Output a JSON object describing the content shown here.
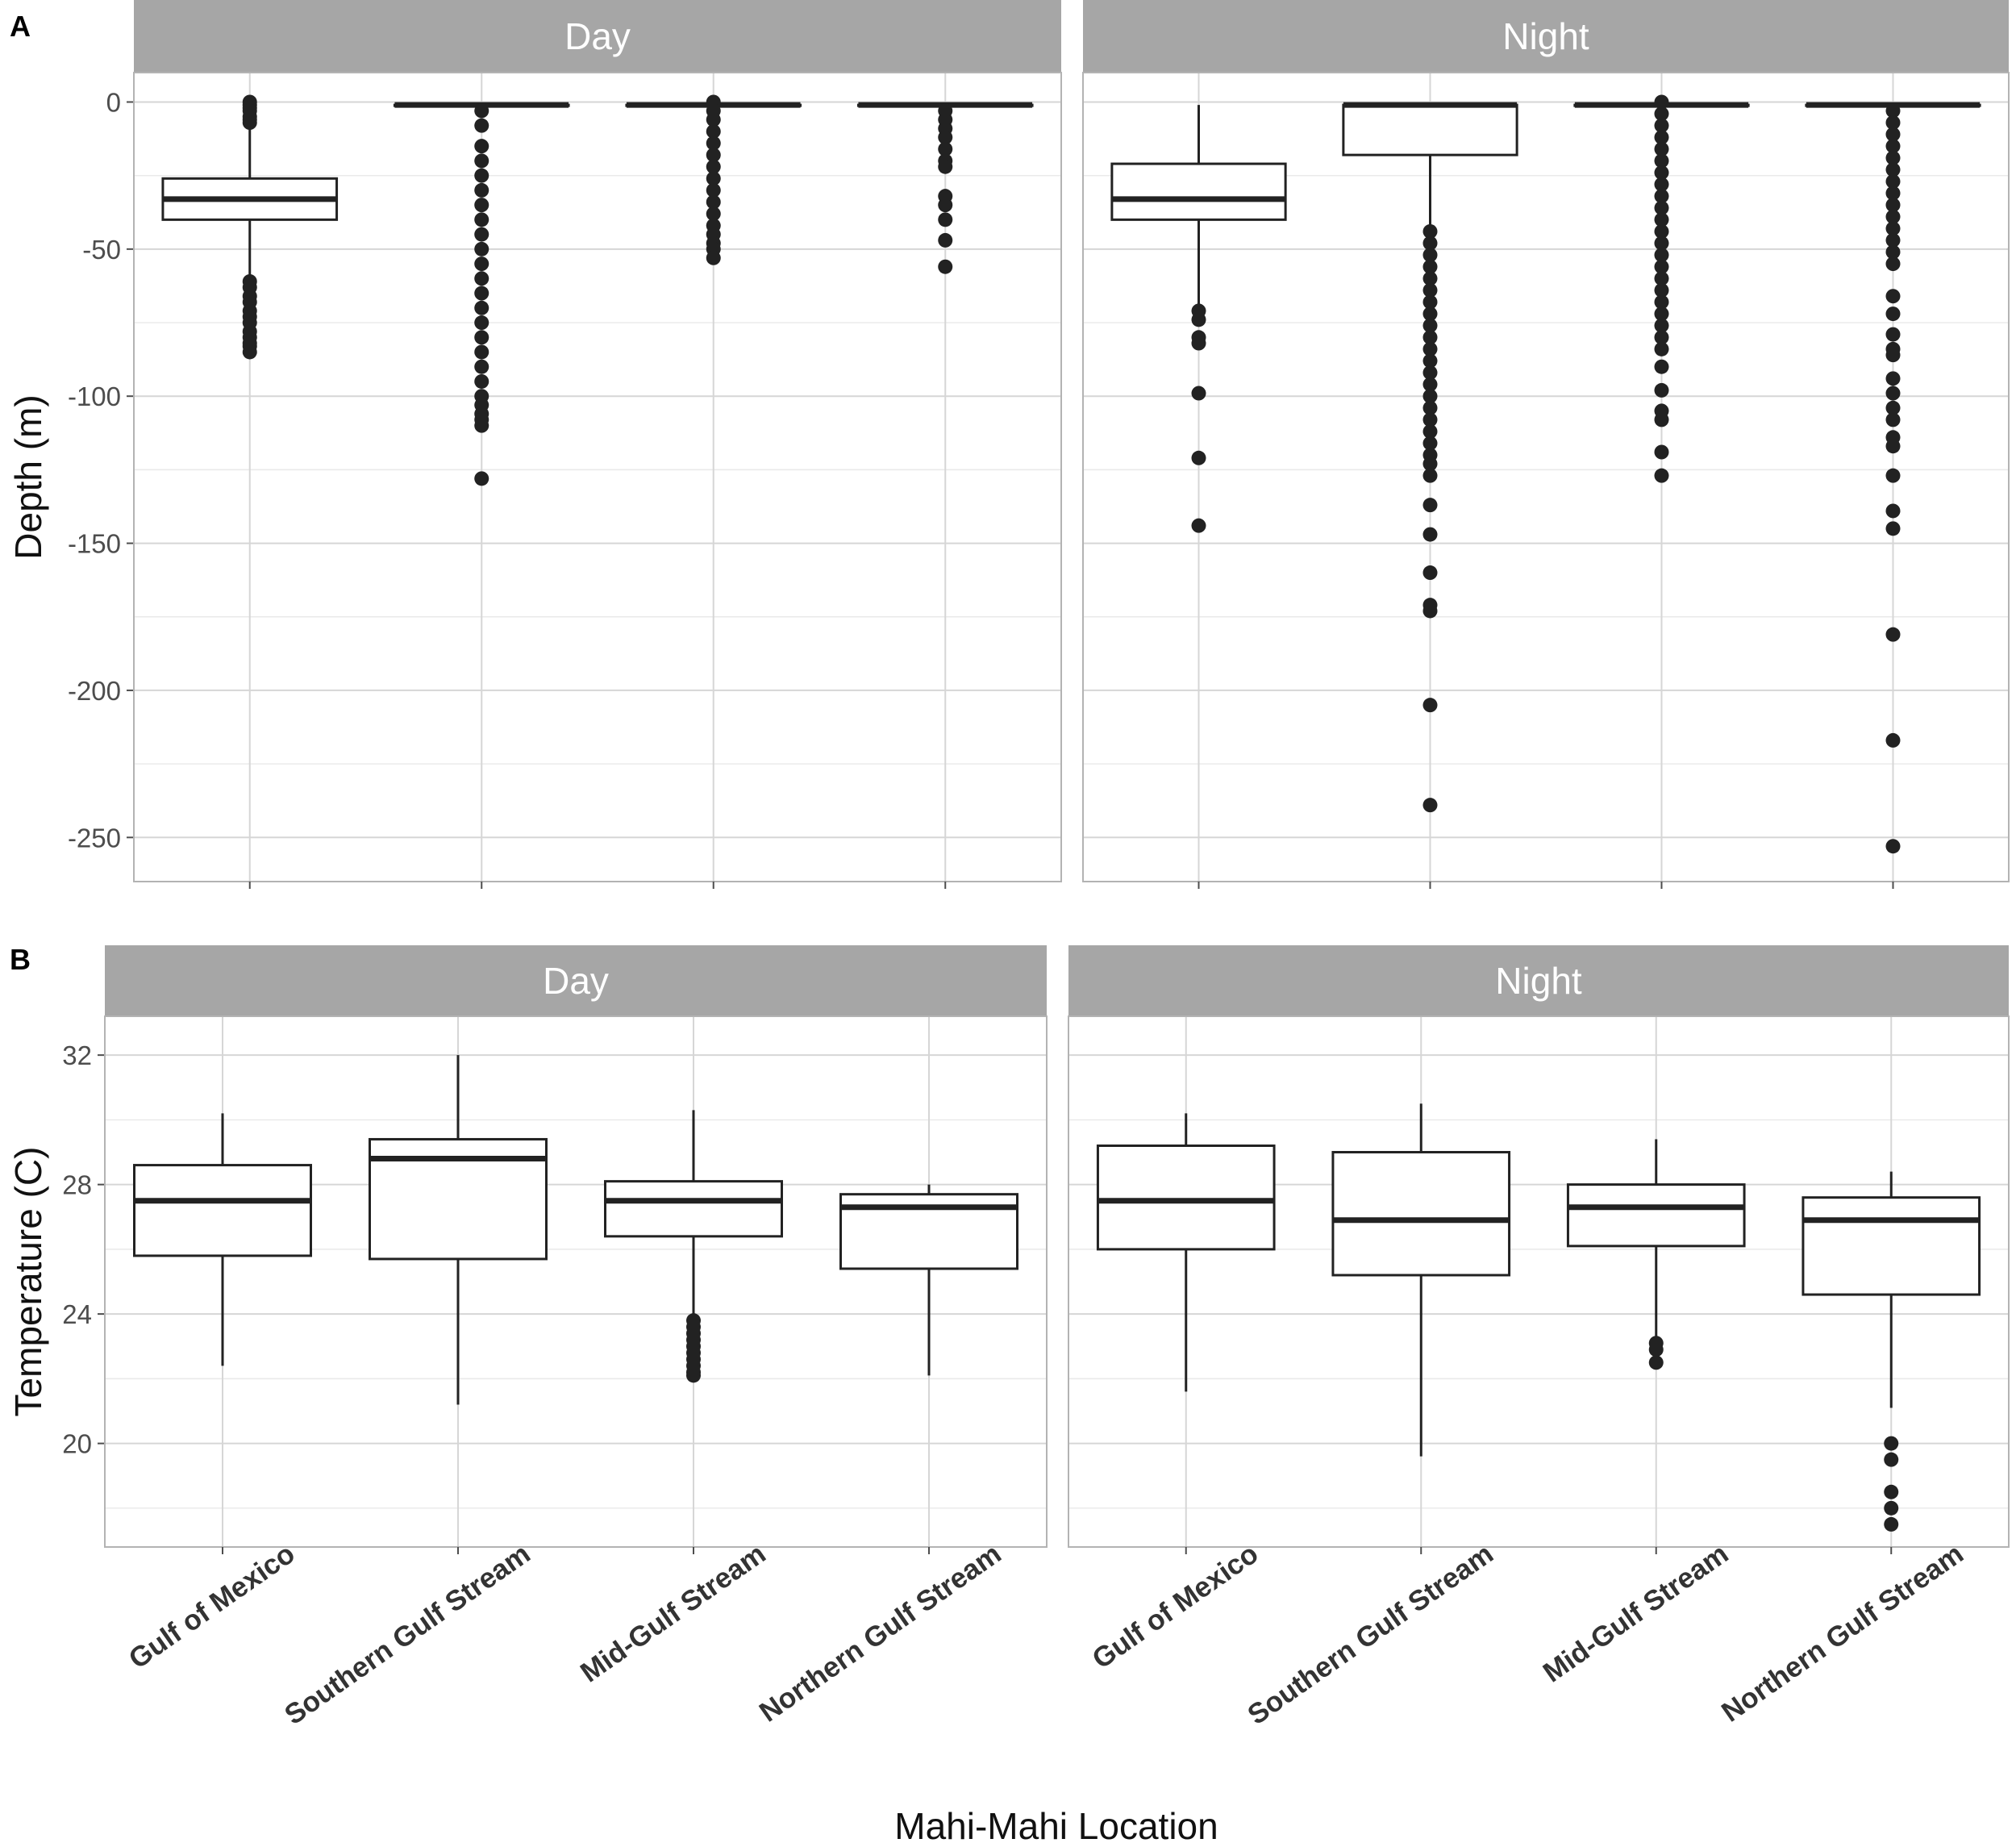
{
  "figure": {
    "xlabel": "Mahi-Mahi Location",
    "colors": {
      "strip": "#a6a6a6",
      "box_stroke": "#222222",
      "grid": "#d6d6d6",
      "frame": "#b3b3b3"
    }
  },
  "chart_data": [
    {
      "type": "boxplot",
      "tag": "A",
      "ylabel": "Depth (m)",
      "ylim": [
        -265,
        10
      ],
      "yticks": [
        0,
        -50,
        -100,
        -150,
        -200,
        -250
      ],
      "categories": [
        "Gulf of Mexico",
        "Southern Gulf Stream",
        "Mid-Gulf Stream",
        "Northern Gulf Stream"
      ],
      "show_category_labels": false,
      "facets": [
        {
          "label": "Day",
          "boxes": [
            {
              "category": "Gulf of Mexico",
              "q1": -40,
              "median": -33,
              "q3": -26,
              "whisker_low": -60,
              "whisker_high": 0,
              "outliers": [
                0,
                -1,
                -2,
                -3,
                -5,
                -6,
                -7,
                -61,
                -63,
                -66,
                -68,
                -71,
                -73,
                -75,
                -78,
                -80,
                -82,
                -83,
                -85
              ]
            },
            {
              "category": "Southern Gulf Stream",
              "q1": -1,
              "median": -1,
              "q3": -1,
              "whisker_low": -1,
              "whisker_high": -1,
              "outliers": [
                -3,
                -8,
                -15,
                -20,
                -25,
                -30,
                -35,
                -40,
                -45,
                -50,
                -55,
                -60,
                -65,
                -70,
                -75,
                -80,
                -85,
                -90,
                -95,
                -100,
                -103,
                -106,
                -108,
                -110,
                -128
              ]
            },
            {
              "category": "Mid-Gulf Stream",
              "q1": -1,
              "median": -1,
              "q3": -1,
              "whisker_low": -1,
              "whisker_high": -1,
              "outliers": [
                0,
                -3,
                -6,
                -10,
                -14,
                -18,
                -22,
                -26,
                -30,
                -34,
                -38,
                -42,
                -45,
                -48,
                -50,
                -53
              ]
            },
            {
              "category": "Northern Gulf Stream",
              "q1": -1,
              "median": -1,
              "q3": -1,
              "whisker_low": -1,
              "whisker_high": -1,
              "outliers": [
                -3,
                -6,
                -9,
                -12,
                -16,
                -20,
                -22,
                -32,
                -35,
                -40,
                -47,
                -56
              ]
            }
          ]
        },
        {
          "label": "Night",
          "boxes": [
            {
              "category": "Gulf of Mexico",
              "q1": -40,
              "median": -33,
              "q3": -21,
              "whisker_low": -70,
              "whisker_high": -1,
              "outliers": [
                -71,
                -74,
                -80,
                -82,
                -99,
                -121,
                -144
              ]
            },
            {
              "category": "Southern Gulf Stream",
              "q1": -18,
              "median": -1,
              "q3": -1,
              "whisker_low": -43,
              "whisker_high": -1,
              "outliers": [
                -44,
                -48,
                -52,
                -56,
                -60,
                -64,
                -68,
                -72,
                -76,
                -80,
                -84,
                -88,
                -92,
                -96,
                -100,
                -104,
                -108,
                -112,
                -116,
                -120,
                -123,
                -127,
                -137,
                -147,
                -160,
                -171,
                -173,
                -205,
                -239
              ]
            },
            {
              "category": "Mid-Gulf Stream",
              "q1": -1,
              "median": -1,
              "q3": -1,
              "whisker_low": -1,
              "whisker_high": -1,
              "outliers": [
                0,
                -4,
                -8,
                -12,
                -16,
                -20,
                -24,
                -28,
                -32,
                -36,
                -40,
                -44,
                -48,
                -52,
                -56,
                -60,
                -64,
                -68,
                -72,
                -76,
                -80,
                -84,
                -90,
                -98,
                -105,
                -108,
                -119,
                -127
              ]
            },
            {
              "category": "Northern Gulf Stream",
              "q1": -1,
              "median": -1,
              "q3": -1,
              "whisker_low": -1,
              "whisker_high": -1,
              "outliers": [
                -3,
                -7,
                -11,
                -15,
                -19,
                -23,
                -27,
                -31,
                -35,
                -39,
                -43,
                -47,
                -51,
                -55,
                -66,
                -72,
                -79,
                -84,
                -86,
                -94,
                -99,
                -104,
                -108,
                -114,
                -117,
                -127,
                -139,
                -145,
                -181,
                -217,
                -253
              ]
            }
          ]
        }
      ]
    },
    {
      "type": "boxplot",
      "tag": "B",
      "ylabel": "Temperature (C)",
      "ylim": [
        16.8,
        33.2
      ],
      "yticks": [
        20,
        24,
        28,
        32
      ],
      "categories": [
        "Gulf of Mexico",
        "Southern Gulf Stream",
        "Mid-Gulf Stream",
        "Northern Gulf Stream"
      ],
      "show_category_labels": true,
      "facets": [
        {
          "label": "Day",
          "boxes": [
            {
              "category": "Gulf of Mexico",
              "q1": 25.8,
              "median": 27.5,
              "q3": 28.6,
              "whisker_low": 22.4,
              "whisker_high": 30.2,
              "outliers": []
            },
            {
              "category": "Southern Gulf Stream",
              "q1": 25.7,
              "median": 28.8,
              "q3": 29.4,
              "whisker_low": 21.2,
              "whisker_high": 32.0,
              "outliers": []
            },
            {
              "category": "Mid-Gulf Stream",
              "q1": 26.4,
              "median": 27.5,
              "q3": 28.1,
              "whisker_low": 23.9,
              "whisker_high": 30.3,
              "outliers": [
                23.8,
                23.6,
                23.4,
                23.2,
                23.0,
                22.8,
                22.6,
                22.4,
                22.2,
                22.1
              ]
            },
            {
              "category": "Northern Gulf Stream",
              "q1": 25.4,
              "median": 27.3,
              "q3": 27.7,
              "whisker_low": 22.1,
              "whisker_high": 28.0,
              "outliers": []
            }
          ]
        },
        {
          "label": "Night",
          "boxes": [
            {
              "category": "Gulf of Mexico",
              "q1": 26.0,
              "median": 27.5,
              "q3": 29.2,
              "whisker_low": 21.6,
              "whisker_high": 30.2,
              "outliers": []
            },
            {
              "category": "Southern Gulf Stream",
              "q1": 25.2,
              "median": 26.9,
              "q3": 29.0,
              "whisker_low": 19.6,
              "whisker_high": 30.5,
              "outliers": []
            },
            {
              "category": "Mid-Gulf Stream",
              "q1": 26.1,
              "median": 27.3,
              "q3": 28.0,
              "whisker_low": 23.3,
              "whisker_high": 29.4,
              "outliers": [
                23.1,
                22.9,
                22.5
              ]
            },
            {
              "category": "Northern Gulf Stream",
              "q1": 24.6,
              "median": 26.9,
              "q3": 27.6,
              "whisker_low": 21.1,
              "whisker_high": 28.4,
              "outliers": [
                20.0,
                19.5,
                18.5,
                18.0,
                17.5
              ]
            }
          ]
        }
      ]
    }
  ]
}
